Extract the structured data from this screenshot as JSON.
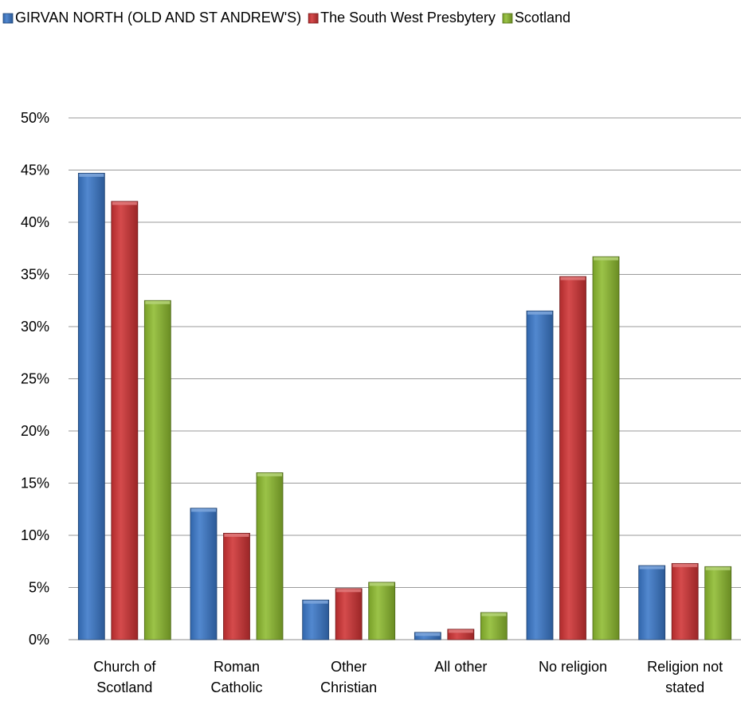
{
  "chart_data": {
    "type": "bar",
    "title": "",
    "xlabel": "",
    "ylabel": "",
    "categories": [
      [
        "Church of",
        "Scotland"
      ],
      [
        "Roman",
        "Catholic"
      ],
      [
        "Other",
        "Christian"
      ],
      [
        "All other"
      ],
      [
        "No religion"
      ],
      [
        "Religion not",
        "stated"
      ]
    ],
    "series": [
      {
        "name": "GIRVAN NORTH (OLD AND ST ANDREW'S)",
        "color": "#3a78c9",
        "values": [
          44.7,
          12.6,
          3.8,
          0.7,
          31.5,
          7.1
        ]
      },
      {
        "name": "The South West Presbytery",
        "color": "#cf3234",
        "values": [
          42.0,
          10.2,
          4.9,
          1.0,
          34.8,
          7.3
        ]
      },
      {
        "name": "Scotland",
        "color": "#8dbb2f",
        "values": [
          32.5,
          16.0,
          5.5,
          2.6,
          36.7,
          7.0
        ]
      }
    ],
    "yticks": [
      "0%",
      "5%",
      "10%",
      "15%",
      "20%",
      "25%",
      "30%",
      "35%",
      "40%",
      "45%",
      "50%"
    ],
    "ylim": [
      0,
      50
    ],
    "grid": true,
    "legend_position": "top"
  }
}
